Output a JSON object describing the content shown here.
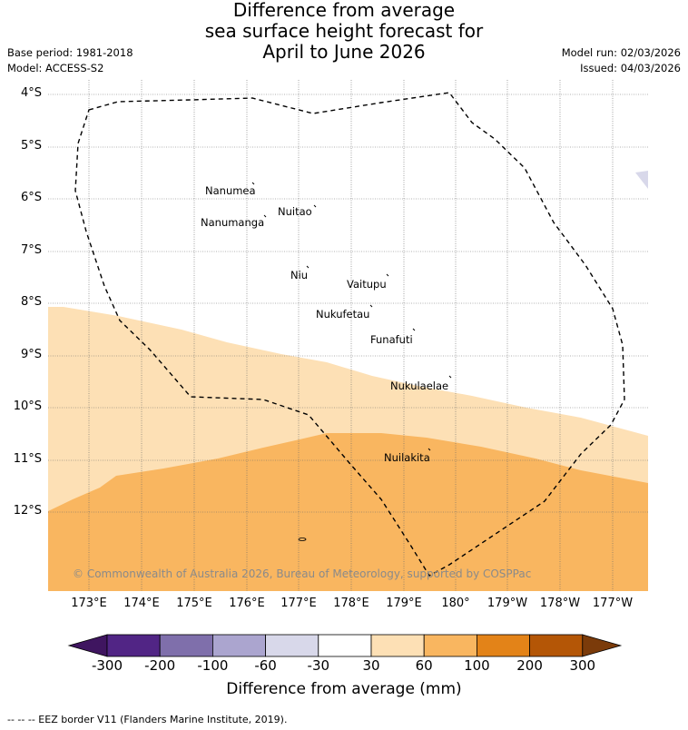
{
  "title": {
    "line1": "Difference from average",
    "line2": "sea surface height forecast for",
    "line3": "April to June 2026"
  },
  "meta": {
    "base_period": "Base period: 1981-2018",
    "model": "Model: ACCESS-S2",
    "model_run": "Model run: 02/03/2026",
    "issued": "Issued: 04/03/2026"
  },
  "map": {
    "latitude_labels": [
      "4°S",
      "5°S",
      "6°S",
      "7°S",
      "8°S",
      "9°S",
      "10°S",
      "11°S",
      "12°S"
    ],
    "longitude_labels": [
      "173°E",
      "174°E",
      "175°E",
      "176°E",
      "177°E",
      "178°E",
      "179°E",
      "180°",
      "179°W",
      "178°W",
      "177°W"
    ],
    "places": [
      {
        "name": "Nanumea"
      },
      {
        "name": "Nuitao"
      },
      {
        "name": "Nanumanga"
      },
      {
        "name": "Niu"
      },
      {
        "name": "Vaitupu"
      },
      {
        "name": "Nukufetau"
      },
      {
        "name": "Funafuti"
      },
      {
        "name": "Nukulaelae"
      },
      {
        "name": "Nuilakita"
      }
    ],
    "copyright": "© Commonwealth of Australia 2026, Bureau of Meteorology, supported by COSPPac"
  },
  "colorbar": {
    "title": "Difference from average (mm)",
    "labels": [
      "-300",
      "-200",
      "-100",
      "-60",
      "-30",
      "30",
      "60",
      "100",
      "200",
      "300"
    ],
    "colors": [
      "#3f1560",
      "#512585",
      "#7f6fab",
      "#aba5cf",
      "#d8d8ea",
      "#ffffff",
      "#fde0b5",
      "#f9b660",
      "#e38318",
      "#b45606",
      "#7b3b0a"
    ]
  },
  "footer": "--  --  -- EEZ border V11 (Flanders Marine Institute, 2019)."
}
